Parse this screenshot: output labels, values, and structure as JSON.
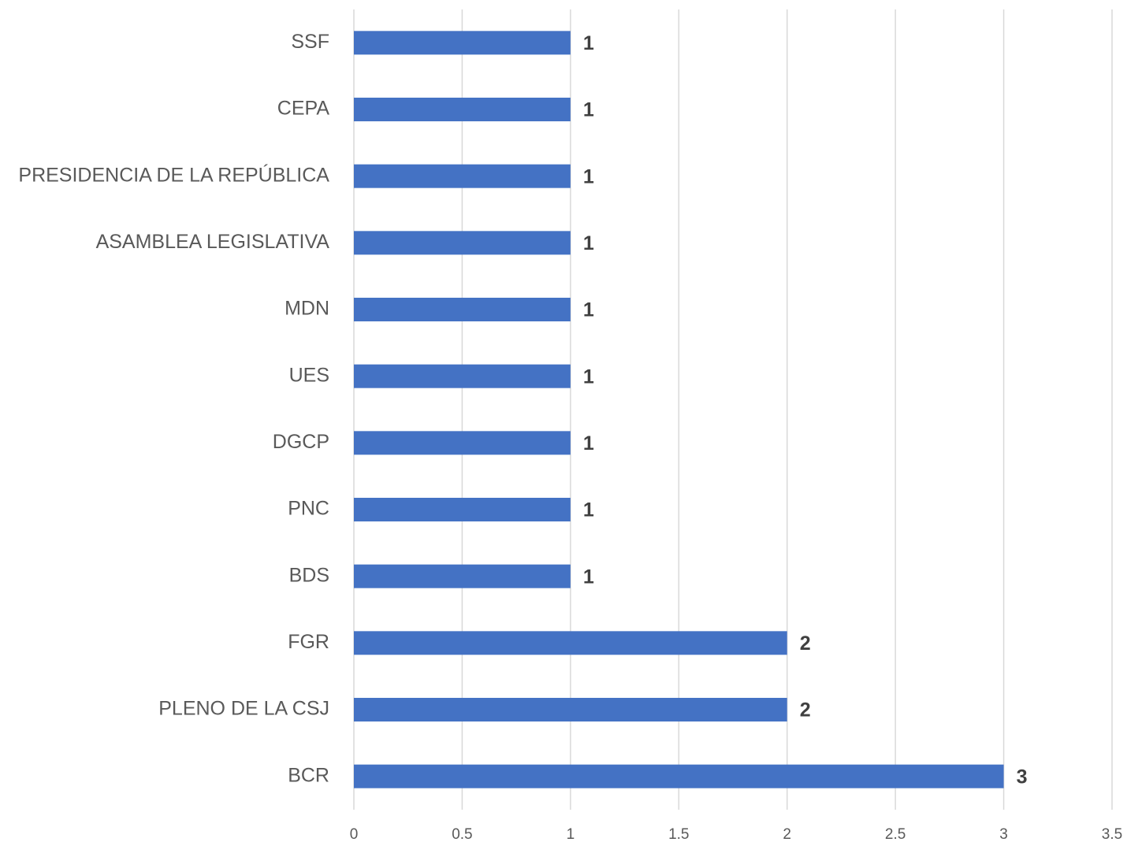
{
  "chart_data": {
    "type": "bar",
    "categories": [
      "SSF",
      "CEPA",
      "PRESIDENCIA DE LA REPÚBLICA",
      "ASAMBLEA LEGISLATIVA",
      "MDN",
      "UES",
      "DGCP",
      "PNC",
      "BDS",
      "FGR",
      "PLENO DE LA CSJ",
      "BCR"
    ],
    "values": [
      1,
      1,
      1,
      1,
      1,
      1,
      1,
      1,
      1,
      2,
      2,
      3
    ],
    "color": "#4472c4",
    "xlim": [
      0,
      3.5
    ],
    "xticks": [
      0,
      0.5,
      1,
      1.5,
      2,
      2.5,
      3,
      3.5
    ],
    "grid": true
  }
}
